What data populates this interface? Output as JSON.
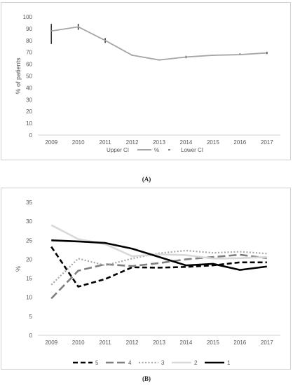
{
  "captions": {
    "a": "(A)",
    "b": "(B)"
  },
  "chart_data": [
    {
      "type": "line",
      "id": "A",
      "ylabel": "% of patients",
      "ylim": [
        0,
        100
      ],
      "yticks": [
        0,
        10,
        20,
        30,
        40,
        50,
        60,
        70,
        80,
        90,
        100
      ],
      "categories": [
        "2009",
        "2010",
        "2011",
        "2012",
        "2013",
        "2014",
        "2015",
        "2016",
        "2017"
      ],
      "series": [
        {
          "name": "%",
          "values": [
            88,
            91.5,
            80,
            67.5,
            63.5,
            66,
            67.5,
            68,
            69.5
          ],
          "color": "#a6a6a6"
        }
      ],
      "error": {
        "upper": [
          94,
          94,
          82,
          68,
          64,
          67,
          68,
          69,
          70.5
        ],
        "lower": [
          77,
          89,
          78,
          67,
          63,
          65,
          67,
          67.5,
          68.5
        ]
      },
      "legend": [
        "Upper CI",
        "%",
        "Lower CI"
      ],
      "legend_position": "bottom",
      "grid": false
    },
    {
      "type": "line",
      "id": "B",
      "ylabel": "%",
      "ylim": [
        0,
        35
      ],
      "yticks": [
        0,
        5,
        10,
        15,
        20,
        25,
        30,
        35
      ],
      "categories": [
        "2009",
        "2010",
        "2011",
        "2012",
        "2013",
        "2014",
        "2015",
        "2016",
        "2017"
      ],
      "series": [
        {
          "name": "5",
          "values": [
            23.3,
            12.8,
            14.8,
            17.9,
            17.8,
            18.0,
            18.4,
            19.2,
            19.2
          ],
          "color": "#000000",
          "style": "dash"
        },
        {
          "name": "4",
          "values": [
            9.7,
            17.0,
            18.7,
            18.2,
            19.0,
            20.0,
            20.6,
            21.2,
            20.3
          ],
          "color": "#7f7f7f",
          "style": "longdash"
        },
        {
          "name": "3",
          "values": [
            13.3,
            20.2,
            18.4,
            20.2,
            21.6,
            22.3,
            21.7,
            22.0,
            21.5
          ],
          "color": "#a6a6a6",
          "style": "dot"
        },
        {
          "name": "2",
          "values": [
            29.0,
            25.3,
            24.0,
            20.8,
            21.3,
            21.1,
            20.2,
            20.3,
            20.6
          ],
          "color": "#d9d9d9",
          "style": "solid"
        },
        {
          "name": "1",
          "values": [
            25.0,
            24.7,
            24.3,
            22.8,
            20.6,
            18.4,
            18.8,
            17.2,
            18.1
          ],
          "color": "#000000",
          "style": "solid"
        }
      ],
      "legend_position": "bottom",
      "grid": false
    }
  ]
}
